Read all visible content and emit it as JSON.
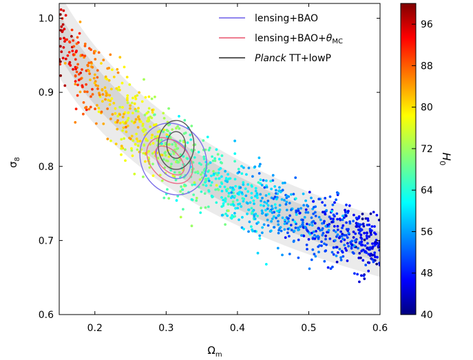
{
  "chart_data": {
    "type": "scatter",
    "title": "",
    "xlabel": "Ω",
    "xlabel_sub": "m",
    "ylabel": "σ",
    "ylabel_sub": "8",
    "xlim": [
      0.15,
      0.6
    ],
    "ylim": [
      0.6,
      1.02
    ],
    "xticks": [
      0.2,
      0.3,
      0.4,
      0.5,
      0.6
    ],
    "xtick_labels": [
      "0.2",
      "0.3",
      "0.4",
      "0.5",
      "0.6"
    ],
    "yticks": [
      0.6,
      0.7,
      0.8,
      0.9,
      1.0
    ],
    "ytick_labels": [
      "0.6",
      "0.7",
      "0.8",
      "0.9",
      "1.0"
    ],
    "grid": false,
    "colorbar": {
      "label": "H",
      "label_sub": "0",
      "range": [
        40,
        100
      ],
      "colormap": "jet",
      "ticks": [
        40,
        48,
        56,
        64,
        72,
        80,
        88,
        96
      ],
      "tick_labels": [
        "40",
        "48",
        "56",
        "64",
        "72",
        "80",
        "88",
        "96"
      ]
    },
    "band": {
      "description_relation": "sigma8 * (Omega_m / 0.3)^0.25 ~ constant",
      "amplitude_center": 0.822,
      "inner_halfwidth": 0.024,
      "outer_halfwidth": 0.048,
      "exponent": 0.25
    },
    "scatter": {
      "relation_exponent": 0.25,
      "amplitude_center": 0.822,
      "omega_range": [
        0.15,
        0.6
      ],
      "h0_at_omega_min": 98,
      "h0_at_omega_max": 46
    },
    "contours": [
      {
        "name": "lensing+BAO",
        "color": "#7c6fe8",
        "center": [
          0.31,
          0.81
        ],
        "levels": [
          [
            0.022,
            0.028
          ],
          [
            0.045,
            0.05
          ]
        ],
        "tilt_deg": -30
      },
      {
        "name": "lensing+BAO+θMC",
        "color": "#e86f8a",
        "center": [
          0.305,
          0.808
        ],
        "levels": [
          [
            0.014,
            0.024
          ],
          [
            0.026,
            0.036
          ]
        ],
        "tilt_deg": -45
      },
      {
        "name": "Planck TT+lowP",
        "color": "#555555",
        "center": [
          0.314,
          0.829
        ],
        "levels": [
          [
            0.013,
            0.018
          ],
          [
            0.025,
            0.033
          ]
        ],
        "tilt_deg": 0
      }
    ],
    "legend": {
      "placement": "top-right",
      "entries": [
        {
          "color": "#6a5ae8",
          "parts": [
            {
              "text": "lensing+BAO"
            }
          ]
        },
        {
          "color": "#e8506a",
          "parts": [
            {
              "text": "lensing+BAO+"
            },
            {
              "text": "θ",
              "italic": true
            },
            {
              "text": "MC",
              "sub": true
            }
          ]
        },
        {
          "color": "#222222",
          "parts": [
            {
              "text": "Planck",
              "italic": true
            },
            {
              "text": " TT+lowP"
            }
          ]
        }
      ]
    }
  }
}
